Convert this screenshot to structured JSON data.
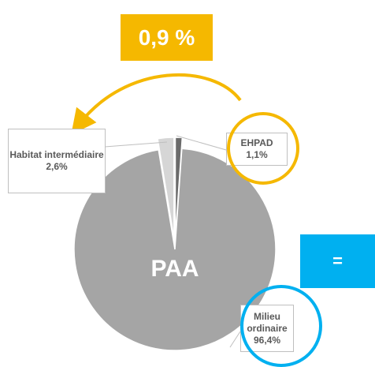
{
  "chart_data": {
    "type": "pie",
    "categories": [
      "EHPAD",
      "Milieu ordinaire",
      "Habitat intermédiaire"
    ],
    "values": [
      1.1,
      96.4,
      2.6
    ],
    "value_labels": [
      "1,1%",
      "96,4%",
      "2,6%"
    ],
    "colors": [
      "#6b6b6b",
      "#a5a5a5",
      "#d6d6d6"
    ],
    "center_label": "PAA",
    "annotations": [
      "0,9 %",
      "="
    ]
  }
}
